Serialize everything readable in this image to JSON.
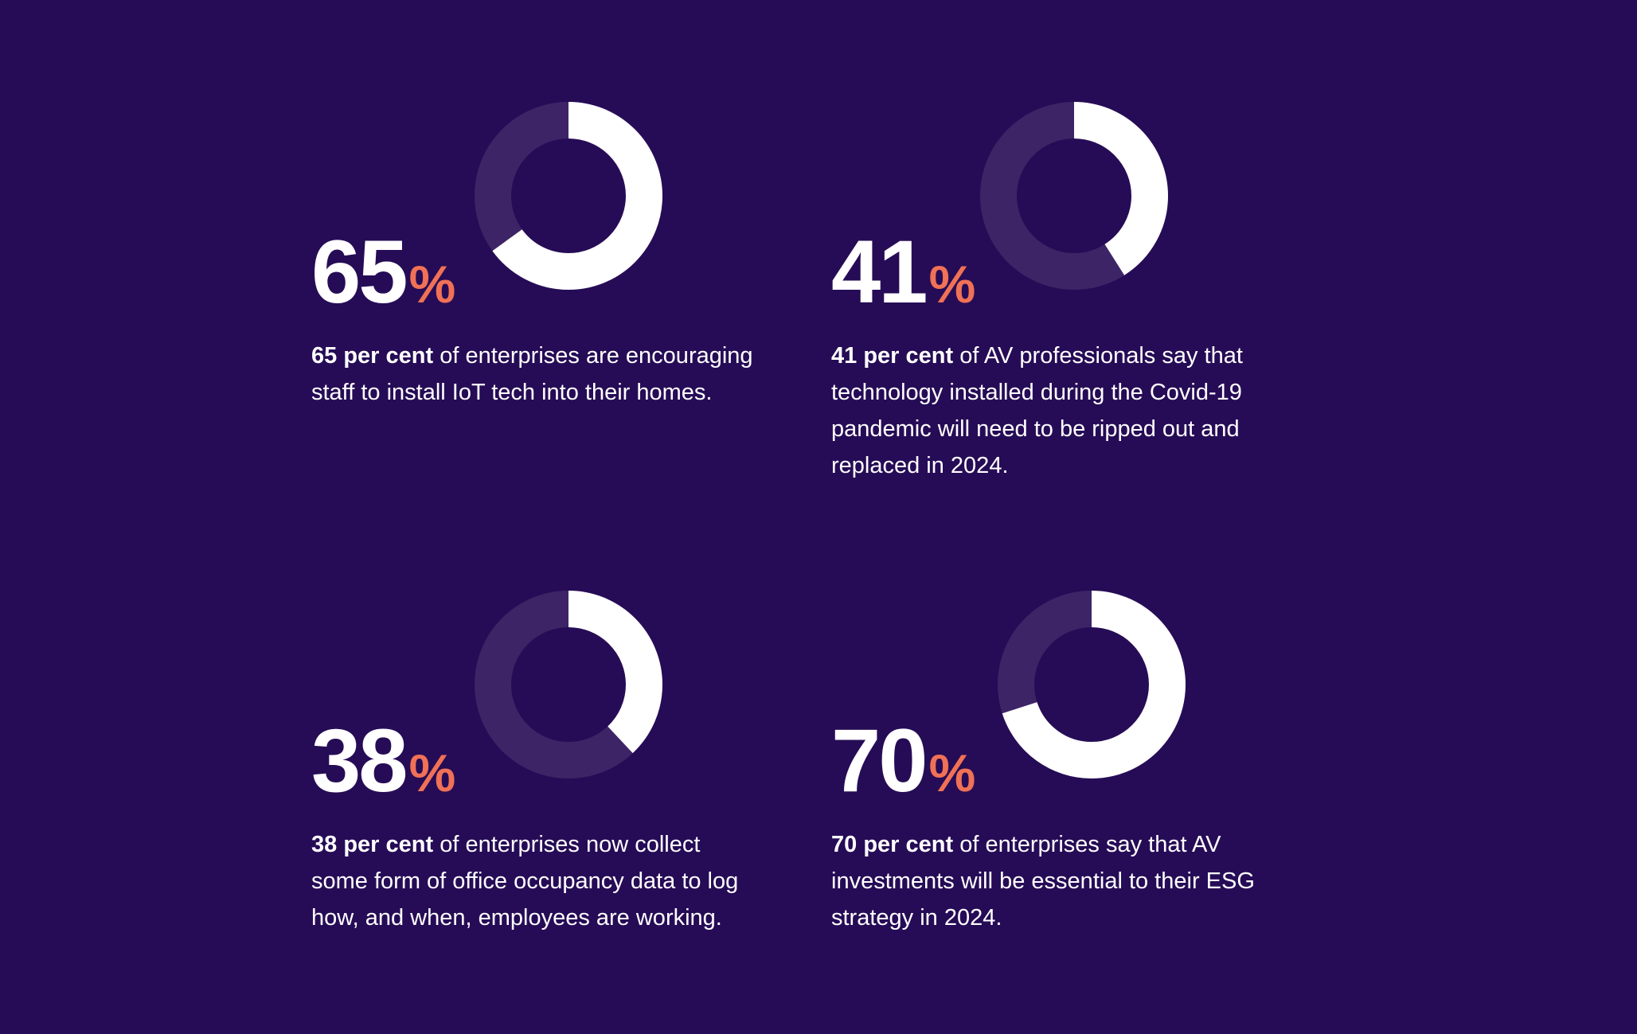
{
  "colors": {
    "background": "#260c56",
    "ring_track": "#3d2466",
    "ring_fill": "#ffffff",
    "percent_sign": "#f07155"
  },
  "chart_data": [
    {
      "type": "pie",
      "values": [
        65,
        35
      ],
      "value_label": "65",
      "unit": "%",
      "desc_bold": "65 per cent",
      "desc_rest": " of enterprises are encouraging staff to install IoT tech into their homes."
    },
    {
      "type": "pie",
      "values": [
        41,
        59
      ],
      "value_label": "41",
      "unit": "%",
      "desc_bold": "41 per cent",
      "desc_rest": " of AV professionals say that technology installed during the Covid-19 pandemic will need to be ripped out and replaced in 2024."
    },
    {
      "type": "pie",
      "values": [
        38,
        62
      ],
      "value_label": "38",
      "unit": "%",
      "desc_bold": "38 per cent",
      "desc_rest": " of enterprises now collect some form of office occupancy data to log how, and when, employees are working."
    },
    {
      "type": "pie",
      "values": [
        70,
        30
      ],
      "value_label": "70",
      "unit": "%",
      "desc_bold": "70 per cent",
      "desc_rest": " of enterprises say that AV investments will be essential to their ESG strategy in 2024."
    }
  ]
}
